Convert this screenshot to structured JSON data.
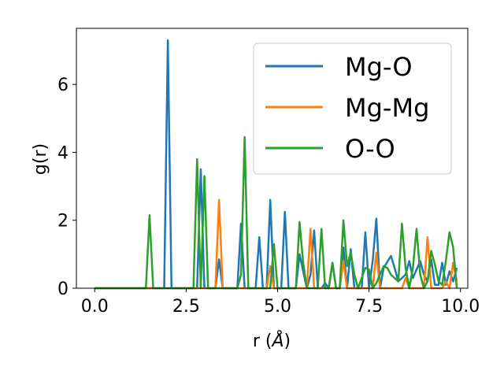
{
  "chart_data": {
    "type": "line",
    "xlabel": "r (",
    "xlabel_unit": "Å",
    "xlabel_close": ")",
    "ylabel": "g(r)",
    "xlim": [
      -0.5,
      10.2
    ],
    "ylim": [
      0,
      7.65
    ],
    "xticks": [
      0.0,
      2.5,
      5.0,
      7.5,
      10.0
    ],
    "xtick_labels": [
      "0.0",
      "2.5",
      "5.0",
      "7.5",
      "10.0"
    ],
    "yticks": [
      0,
      2,
      4,
      6
    ],
    "ytick_labels": [
      "0",
      "2",
      "4",
      "6"
    ],
    "legend_position": "top-right",
    "grid": false,
    "series": [
      {
        "name": "Mg-O",
        "color": "#1f77b4",
        "points": [
          [
            0,
            0
          ],
          [
            1.9,
            0
          ],
          [
            2.0,
            7.3
          ],
          [
            2.1,
            0
          ],
          [
            2.8,
            0
          ],
          [
            2.9,
            3.5
          ],
          [
            3.0,
            0
          ],
          [
            3.3,
            0
          ],
          [
            3.4,
            0.85
          ],
          [
            3.5,
            0
          ],
          [
            3.9,
            0
          ],
          [
            4.0,
            1.9
          ],
          [
            4.1,
            0
          ],
          [
            4.4,
            0
          ],
          [
            4.5,
            1.5
          ],
          [
            4.6,
            0
          ],
          [
            4.7,
            0
          ],
          [
            4.8,
            2.6
          ],
          [
            4.9,
            0
          ],
          [
            5.1,
            0
          ],
          [
            5.2,
            2.25
          ],
          [
            5.3,
            0
          ],
          [
            5.5,
            0
          ],
          [
            5.6,
            1.0
          ],
          [
            5.8,
            0
          ],
          [
            5.9,
            0.4
          ],
          [
            6.0,
            1.7
          ],
          [
            6.1,
            0
          ],
          [
            6.2,
            0
          ],
          [
            6.3,
            0.15
          ],
          [
            6.4,
            0
          ],
          [
            6.5,
            0.75
          ],
          [
            6.6,
            0
          ],
          [
            6.7,
            0
          ],
          [
            6.8,
            1.2
          ],
          [
            6.9,
            0
          ],
          [
            7.0,
            1.15
          ],
          [
            7.1,
            0
          ],
          [
            7.3,
            0
          ],
          [
            7.4,
            1.65
          ],
          [
            7.5,
            0
          ],
          [
            7.6,
            0.8
          ],
          [
            7.7,
            2.05
          ],
          [
            7.8,
            0
          ],
          [
            7.9,
            0.6
          ],
          [
            8.1,
            0.95
          ],
          [
            8.2,
            0.6
          ],
          [
            8.3,
            0.2
          ],
          [
            8.5,
            0.4
          ],
          [
            8.6,
            0.8
          ],
          [
            8.7,
            0.3
          ],
          [
            8.9,
            0.8
          ],
          [
            9.0,
            0.4
          ],
          [
            9.1,
            0.2
          ],
          [
            9.2,
            0.85
          ],
          [
            9.3,
            0.1
          ],
          [
            9.4,
            0.1
          ],
          [
            9.5,
            0.75
          ],
          [
            9.6,
            0.1
          ],
          [
            9.7,
            0.5
          ],
          [
            9.8,
            0.2
          ],
          [
            9.9,
            0.6
          ]
        ]
      },
      {
        "name": "Mg-Mg",
        "color": "#ff7f0e",
        "points": [
          [
            0,
            0
          ],
          [
            3.3,
            0
          ],
          [
            3.4,
            2.6
          ],
          [
            3.5,
            0
          ],
          [
            4.7,
            0
          ],
          [
            4.8,
            0.65
          ],
          [
            4.9,
            0
          ],
          [
            5.8,
            0
          ],
          [
            5.9,
            1.75
          ],
          [
            6.0,
            0
          ],
          [
            6.7,
            0
          ],
          [
            6.8,
            0.8
          ],
          [
            6.9,
            0
          ],
          [
            7.6,
            0
          ],
          [
            7.7,
            1.05
          ],
          [
            7.8,
            0
          ],
          [
            8.4,
            0
          ],
          [
            8.5,
            0.3
          ],
          [
            8.6,
            0
          ],
          [
            9.0,
            0
          ],
          [
            9.1,
            1.5
          ],
          [
            9.2,
            0
          ],
          [
            9.5,
            0
          ],
          [
            9.6,
            0.2
          ],
          [
            9.7,
            0
          ],
          [
            9.8,
            0.75
          ],
          [
            9.9,
            0.2
          ]
        ]
      },
      {
        "name": "O-O",
        "color": "#2ca02c",
        "points": [
          [
            0,
            0
          ],
          [
            1.4,
            0
          ],
          [
            1.5,
            2.15
          ],
          [
            1.6,
            0
          ],
          [
            2.7,
            0
          ],
          [
            2.8,
            3.8
          ],
          [
            2.9,
            0
          ],
          [
            3.0,
            3.3
          ],
          [
            3.1,
            0
          ],
          [
            3.9,
            0
          ],
          [
            4.0,
            0.4
          ],
          [
            4.1,
            4.45
          ],
          [
            4.2,
            0
          ],
          [
            4.8,
            0
          ],
          [
            4.9,
            1.3
          ],
          [
            5.0,
            0
          ],
          [
            5.5,
            0
          ],
          [
            5.6,
            1.95
          ],
          [
            5.7,
            0.75
          ],
          [
            5.8,
            0
          ],
          [
            6.1,
            0
          ],
          [
            6.2,
            1.75
          ],
          [
            6.3,
            0
          ],
          [
            6.4,
            0
          ],
          [
            6.5,
            0.75
          ],
          [
            6.6,
            0
          ],
          [
            6.7,
            0
          ],
          [
            6.8,
            2.0
          ],
          [
            6.9,
            0.65
          ],
          [
            7.0,
            1.05
          ],
          [
            7.1,
            0.4
          ],
          [
            7.2,
            0
          ],
          [
            7.4,
            0.6
          ],
          [
            7.5,
            0.55
          ],
          [
            7.6,
            0
          ],
          [
            7.7,
            0.15
          ],
          [
            7.9,
            0.65
          ],
          [
            8.0,
            0.6
          ],
          [
            8.1,
            0.4
          ],
          [
            8.3,
            0.2
          ],
          [
            8.4,
            1.9
          ],
          [
            8.5,
            0.6
          ],
          [
            8.6,
            0
          ],
          [
            8.7,
            0.6
          ],
          [
            8.8,
            1.75
          ],
          [
            8.9,
            0.4
          ],
          [
            9.0,
            0
          ],
          [
            9.1,
            0.2
          ],
          [
            9.2,
            1.1
          ],
          [
            9.3,
            0.7
          ],
          [
            9.4,
            0.2
          ],
          [
            9.5,
            0.1
          ],
          [
            9.6,
            0.8
          ],
          [
            9.7,
            1.65
          ],
          [
            9.8,
            1.2
          ],
          [
            9.9,
            0
          ]
        ]
      }
    ]
  }
}
